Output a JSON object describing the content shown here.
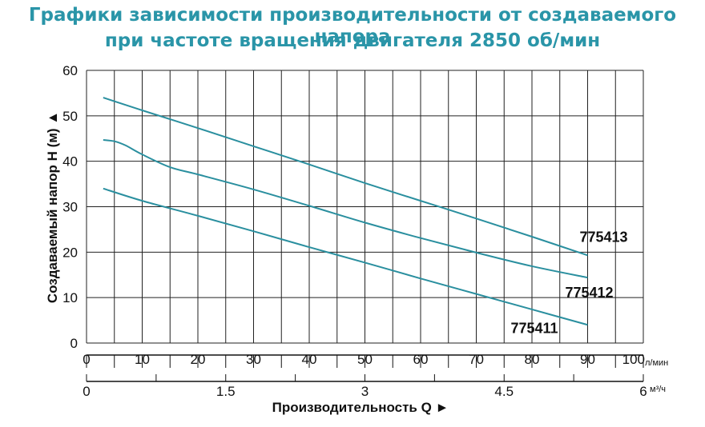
{
  "header": {
    "title_line1": "Графики зависимости производительности от создаваемого напора",
    "title_line2": "при частоте вращения двигателя 2850 об/мин"
  },
  "chart_data": {
    "type": "line",
    "xlabel": "Производительность Q",
    "ylabel": "Создаваемый напор H (м)",
    "xlim": [
      0,
      100
    ],
    "ylim": [
      0,
      60
    ],
    "x_ticks": [
      "0",
      "10",
      "20",
      "30",
      "40",
      "50",
      "60",
      "70",
      "80",
      "90",
      "100"
    ],
    "x_unit": "л/мин",
    "x2_ticks": [
      "0",
      "1.5",
      "3",
      "4.5",
      "6"
    ],
    "x2_tick_values": [
      0,
      1.5,
      3,
      4.5,
      6
    ],
    "x2_max": 6,
    "x2_unit": "м³/ч",
    "y_ticks": [
      "0",
      "10",
      "20",
      "30",
      "40",
      "50",
      "60"
    ],
    "grid": true,
    "colors": {
      "line": "#2a8f9f",
      "title": "#2a95a8",
      "grid": "#222222"
    },
    "series": [
      {
        "name": "775413",
        "x": [
          3,
          10,
          20,
          30,
          40,
          50,
          60,
          70,
          80,
          90
        ],
        "y": [
          54,
          51.2,
          47.3,
          43.3,
          39.3,
          35.2,
          31.3,
          27.4,
          23.4,
          19.3
        ]
      },
      {
        "name": "775412",
        "x": [
          3,
          5,
          7,
          10,
          15,
          20,
          30,
          40,
          50,
          60,
          70,
          80,
          90
        ],
        "y": [
          44.7,
          44.4,
          43.5,
          41.5,
          38.7,
          37.1,
          33.8,
          30.2,
          26.5,
          23.1,
          19.9,
          16.9,
          14.4
        ]
      },
      {
        "name": "775411",
        "x": [
          3,
          10,
          20,
          30,
          40,
          50,
          60,
          70,
          80,
          90
        ],
        "y": [
          34,
          31.3,
          28,
          24.6,
          21.1,
          17.7,
          14.2,
          10.8,
          7.4,
          4
        ]
      }
    ]
  }
}
